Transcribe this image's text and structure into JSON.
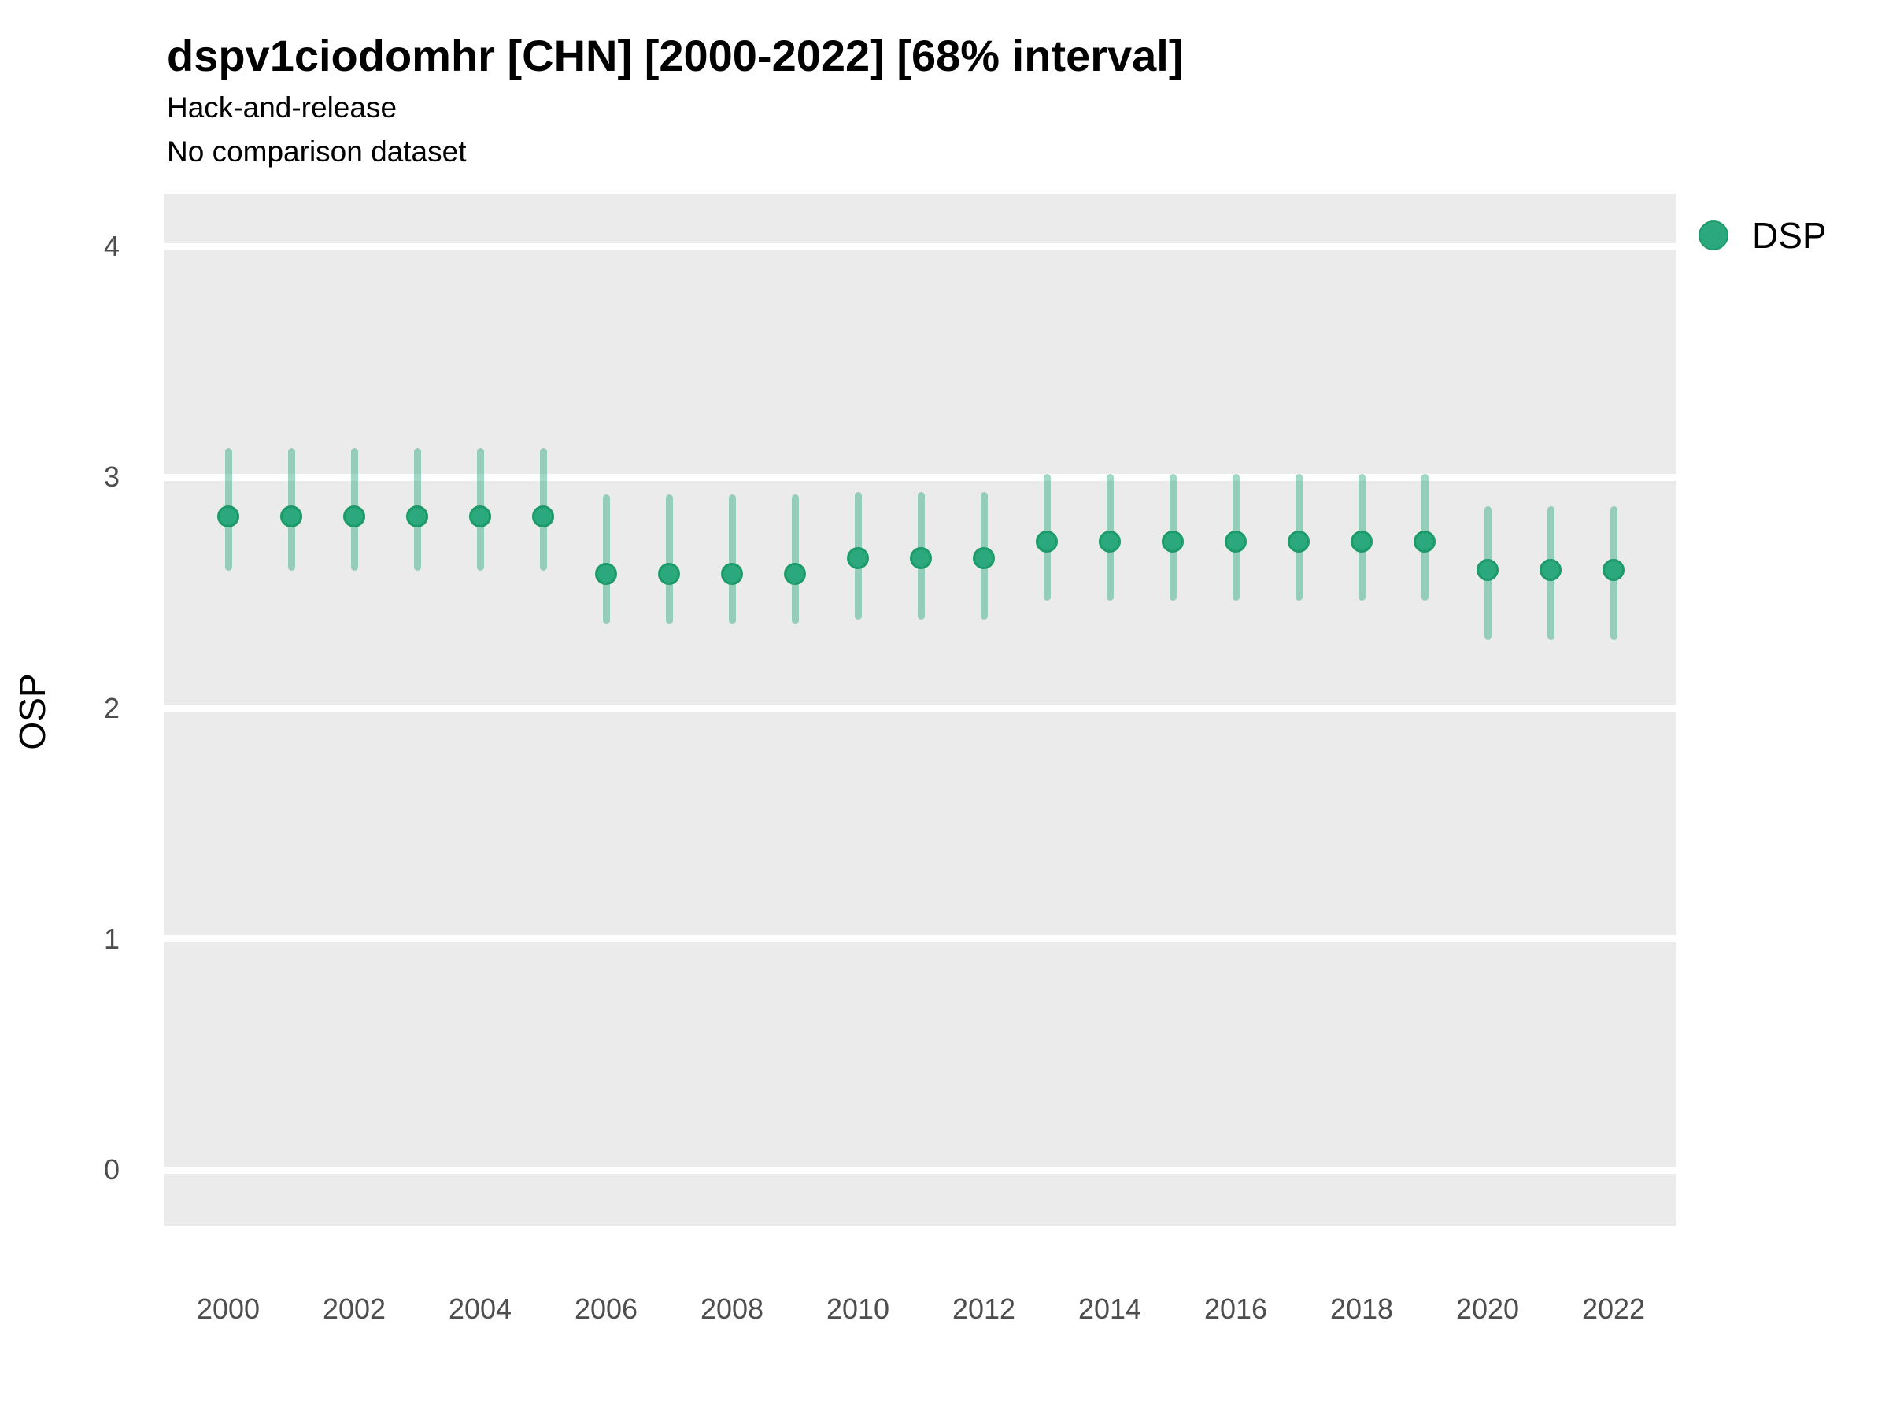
{
  "header": {
    "title": "dspv1ciodomhr [CHN] [2000-2022] [68% interval]",
    "subtitle1": "Hack-and-release",
    "subtitle2": "No comparison dataset"
  },
  "legend": {
    "label": "DSP",
    "dot_color": "#2BA87D",
    "position": "right"
  },
  "colors": {
    "panel_background": "#EBEBEB",
    "gridline": "#FFFFFF",
    "point_fill": "#2BA87D",
    "point_border": "#1E9B6B",
    "interval_line": "rgba(44,169,127,0.45)",
    "tick_text": "#4d4d4d",
    "title_text": "#000000"
  },
  "chart_data": {
    "type": "scatter",
    "subtype": "pointrange",
    "title": "dspv1ciodomhr [CHN] [2000-2022] [68% interval]",
    "subtitle": [
      "Hack-and-release",
      "No comparison dataset"
    ],
    "xlabel": "",
    "ylabel": "OSP",
    "interval_level": "68%",
    "grid": "major-horizontal-only",
    "legend_position": "right",
    "x_ticks": [
      2000,
      2002,
      2004,
      2006,
      2008,
      2010,
      2012,
      2014,
      2016,
      2018,
      2020,
      2022
    ],
    "y_ticks": [
      4,
      3,
      2,
      1,
      0
    ],
    "xlim": [
      1999,
      2023
    ],
    "ylim": [
      -0.24,
      4.23
    ],
    "series": [
      {
        "name": "DSP",
        "points": [
          {
            "year": 2000,
            "mid": 2.83,
            "lo": 2.61,
            "hi": 3.11
          },
          {
            "year": 2001,
            "mid": 2.83,
            "lo": 2.61,
            "hi": 3.11
          },
          {
            "year": 2002,
            "mid": 2.83,
            "lo": 2.61,
            "hi": 3.11
          },
          {
            "year": 2003,
            "mid": 2.83,
            "lo": 2.61,
            "hi": 3.11
          },
          {
            "year": 2004,
            "mid": 2.83,
            "lo": 2.61,
            "hi": 3.11
          },
          {
            "year": 2005,
            "mid": 2.83,
            "lo": 2.61,
            "hi": 3.11
          },
          {
            "year": 2006,
            "mid": 2.58,
            "lo": 2.38,
            "hi": 2.91
          },
          {
            "year": 2007,
            "mid": 2.58,
            "lo": 2.38,
            "hi": 2.91
          },
          {
            "year": 2008,
            "mid": 2.58,
            "lo": 2.38,
            "hi": 2.91
          },
          {
            "year": 2009,
            "mid": 2.58,
            "lo": 2.38,
            "hi": 2.91
          },
          {
            "year": 2010,
            "mid": 2.65,
            "lo": 2.4,
            "hi": 2.92
          },
          {
            "year": 2011,
            "mid": 2.65,
            "lo": 2.4,
            "hi": 2.92
          },
          {
            "year": 2012,
            "mid": 2.65,
            "lo": 2.4,
            "hi": 2.92
          },
          {
            "year": 2013,
            "mid": 2.72,
            "lo": 2.48,
            "hi": 3.0
          },
          {
            "year": 2014,
            "mid": 2.72,
            "lo": 2.48,
            "hi": 3.0
          },
          {
            "year": 2015,
            "mid": 2.72,
            "lo": 2.48,
            "hi": 3.0
          },
          {
            "year": 2016,
            "mid": 2.72,
            "lo": 2.48,
            "hi": 3.0
          },
          {
            "year": 2017,
            "mid": 2.72,
            "lo": 2.48,
            "hi": 3.0
          },
          {
            "year": 2018,
            "mid": 2.72,
            "lo": 2.48,
            "hi": 3.0
          },
          {
            "year": 2019,
            "mid": 2.72,
            "lo": 2.48,
            "hi": 3.0
          },
          {
            "year": 2020,
            "mid": 2.6,
            "lo": 2.31,
            "hi": 2.86
          },
          {
            "year": 2021,
            "mid": 2.6,
            "lo": 2.31,
            "hi": 2.86
          },
          {
            "year": 2022,
            "mid": 2.6,
            "lo": 2.31,
            "hi": 2.86
          }
        ]
      }
    ]
  }
}
